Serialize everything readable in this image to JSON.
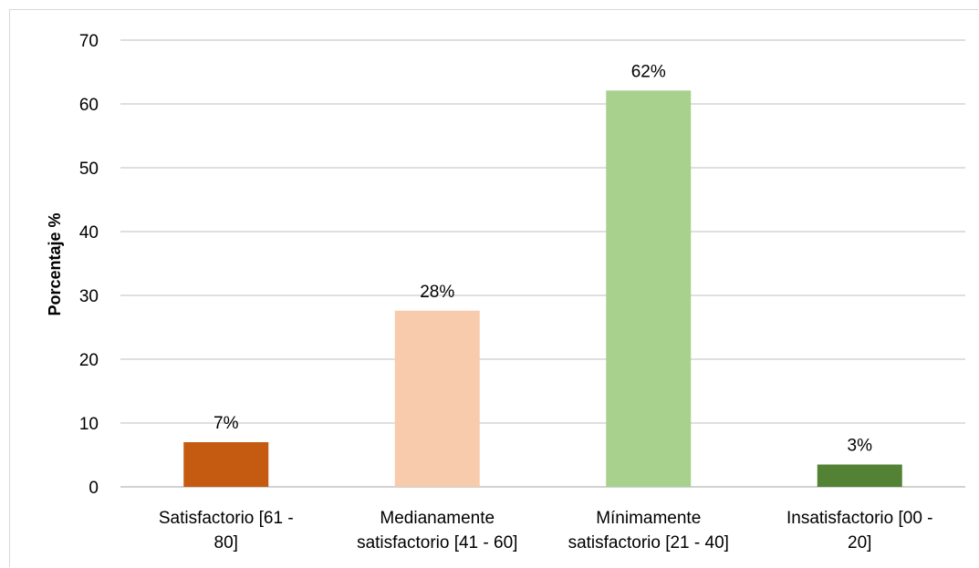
{
  "chart_data": {
    "type": "bar",
    "title": "",
    "xlabel": "",
    "ylabel": "Porcentaje %",
    "ylim": [
      0,
      70
    ],
    "yticks": [
      0,
      10,
      20,
      30,
      40,
      50,
      60,
      70
    ],
    "grid": true,
    "legend": "none",
    "categories": [
      [
        "Satisfactorio [61 -",
        "80]"
      ],
      [
        "Medianamente",
        "satisfactorio [41 - 60]"
      ],
      [
        "Mínimamente",
        "satisfactorio [21 - 40]"
      ],
      [
        "Insatisfactorio [00 -",
        "20]"
      ]
    ],
    "values": [
      7,
      27.6,
      62.1,
      3.5
    ],
    "data_labels": [
      "7%",
      "28%",
      "62%",
      "3%"
    ],
    "colors": [
      "#c55a11",
      "#f8cbad",
      "#a9d18e",
      "#548235"
    ]
  }
}
